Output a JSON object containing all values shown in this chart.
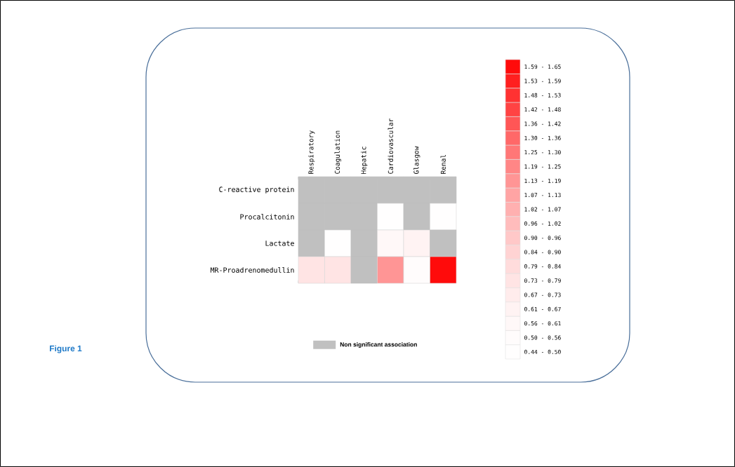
{
  "chart_data": {
    "type": "heatmap",
    "categories": [
      "Respiratory",
      "Coagulation",
      "Hepatic",
      "Cardiovascular",
      "Glasgow",
      "Renal"
    ],
    "y_categories": [
      "C-reactive protein",
      "Procalcitonin",
      "Lactate",
      "MR-Proadrenomedullin"
    ],
    "cells": [
      [
        null,
        null,
        null,
        null,
        null,
        null
      ],
      [
        null,
        null,
        null,
        0.47,
        null,
        0.47
      ],
      [
        null,
        0.47,
        null,
        0.585,
        0.64,
        null
      ],
      [
        0.76,
        0.76,
        null,
        1.16,
        0.53,
        1.62
      ]
    ],
    "clim": [
      0.44,
      1.65
    ],
    "cticks": [
      {
        "value": 0.47,
        "label": "0.44 - 0.50"
      },
      {
        "value": 0.53,
        "label": "0.50 - 0.56"
      },
      {
        "value": 0.585,
        "label": "0.56 - 0.61"
      },
      {
        "value": 0.64,
        "label": "0.61 - 0.67"
      },
      {
        "value": 0.7,
        "label": "0.67 - 0.73"
      },
      {
        "value": 0.76,
        "label": "0.73 - 0.79"
      },
      {
        "value": 0.815,
        "label": "0.79 - 0.84"
      },
      {
        "value": 0.87,
        "label": "0.84 - 0.90"
      },
      {
        "value": 0.93,
        "label": "0.90 - 0.96"
      },
      {
        "value": 0.99,
        "label": "0.96 - 1.02"
      },
      {
        "value": 1.045,
        "label": "1.02 - 1.07"
      },
      {
        "value": 1.1,
        "label": "1.07 - 1.13"
      },
      {
        "value": 1.16,
        "label": "1.13 - 1.19"
      },
      {
        "value": 1.22,
        "label": "1.19 - 1.25"
      },
      {
        "value": 1.275,
        "label": "1.25 - 1.30"
      },
      {
        "value": 1.33,
        "label": "1.30 - 1.36"
      },
      {
        "value": 1.39,
        "label": "1.36 - 1.42"
      },
      {
        "value": 1.45,
        "label": "1.42 - 1.48"
      },
      {
        "value": 1.505,
        "label": "1.48 - 1.53"
      },
      {
        "value": 1.56,
        "label": "1.53 - 1.59"
      },
      {
        "value": 1.62,
        "label": "1.59 - 1.65"
      }
    ],
    "annotations": [
      "Non significant association",
      "Figure 1"
    ]
  }
}
